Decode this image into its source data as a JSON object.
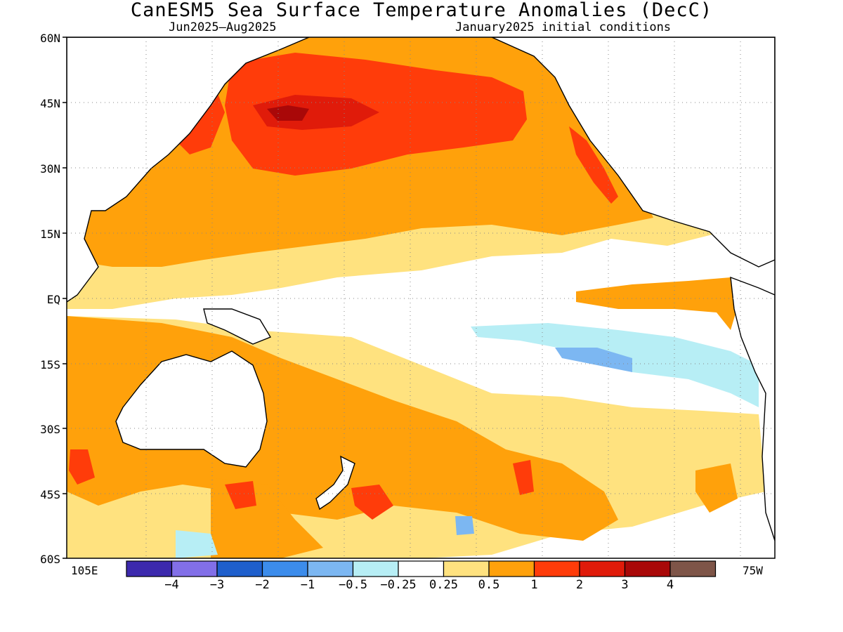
{
  "title": "CanESM5 Sea Surface Temperature Anomalies (DecC)",
  "subtitle_left": "Jun2025–Aug2025",
  "subtitle_right": "January2025 initial conditions",
  "lat_labels": [
    "60N",
    "45N",
    "30N",
    "15N",
    "EQ",
    "15S",
    "30S",
    "45S",
    "60S"
  ],
  "lon_labels": {
    "left": "105E",
    "right": "75W"
  },
  "legend": {
    "colors": [
      "#3c29ad",
      "#826fe8",
      "#1f5fcc",
      "#3c8ceb",
      "#7cb7f2",
      "#b7eef5",
      "#ffffff",
      "#ffe27f",
      "#ffa10b",
      "#ff3c0a",
      "#e01b0a",
      "#a90808",
      "#7e5548"
    ],
    "labels": [
      "−4",
      "−3",
      "−2",
      "−1",
      "−0.5",
      "−0.25",
      "0.25",
      "0.5",
      "1",
      "2",
      "3",
      "4"
    ]
  }
}
